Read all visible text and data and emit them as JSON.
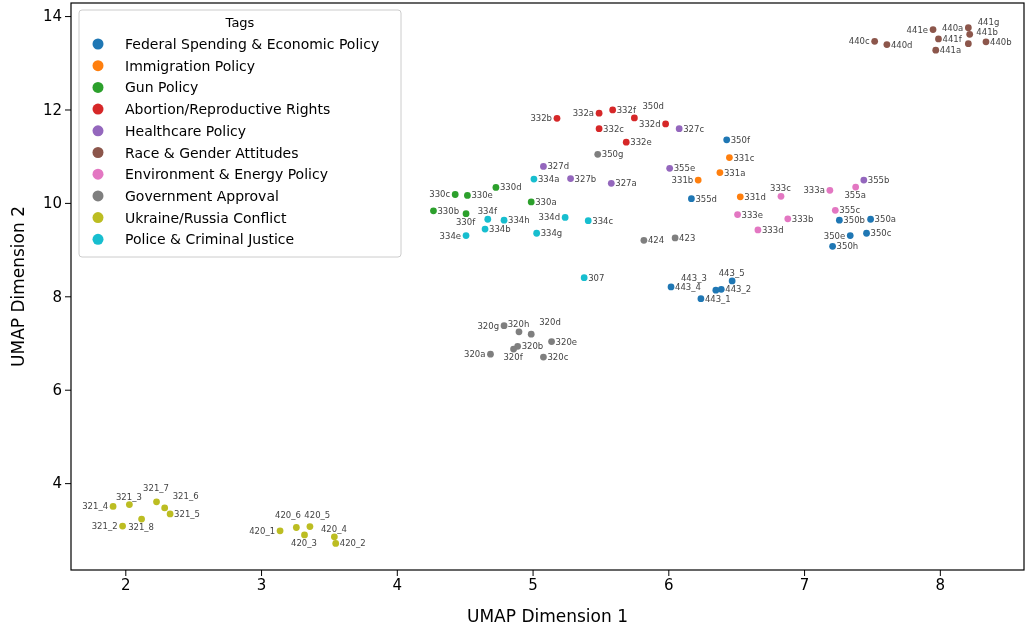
{
  "chart_data": {
    "type": "scatter",
    "xlabel": "UMAP Dimension 1",
    "ylabel": "UMAP Dimension 2",
    "legend_title": "Tags",
    "legend": "top left",
    "marker": "circle",
    "grid": false,
    "xlim": [
      1.6,
      8.62
    ],
    "ylim": [
      2.14,
      14.28
    ],
    "xticks": [
      2,
      3,
      4,
      5,
      6,
      7,
      8
    ],
    "yticks": [
      4,
      6,
      8,
      10,
      12,
      14
    ],
    "series": [
      {
        "name": "Federal Spending & Economic Policy",
        "color": "#1f77b4",
        "x": [
          6.43,
          6.17,
          7.26,
          7.49,
          7.34,
          7.46,
          7.21,
          6.24,
          6.39,
          6.35,
          6.02,
          6.47
        ],
        "values": [
          11.35,
          10.09,
          9.63,
          9.65,
          9.3,
          9.35,
          9.07,
          7.95,
          8.15,
          8.13,
          8.2,
          8.33
        ]
      },
      {
        "name": "Immigration Policy",
        "color": "#ff7f0e",
        "x": [
          6.38,
          6.22,
          6.45,
          6.53
        ],
        "values": [
          10.65,
          10.49,
          10.97,
          10.13
        ]
      },
      {
        "name": "Gun Policy",
        "color": "#2ca02c",
        "x": [
          4.99,
          4.27,
          4.43,
          4.73,
          4.52,
          4.51
        ],
        "values": [
          10.02,
          9.83,
          10.18,
          10.33,
          10.16,
          9.77
        ]
      },
      {
        "name": "Abortion/Reproductive Rights",
        "color": "#d62728",
        "x": [
          5.49,
          5.18,
          5.49,
          5.98,
          5.69,
          5.59,
          5.75
        ],
        "values": [
          11.92,
          11.81,
          11.59,
          11.69,
          11.3,
          11.99,
          11.82
        ]
      },
      {
        "name": "Healthcare Policy",
        "color": "#9467bd",
        "x": [
          5.58,
          5.28,
          6.08,
          5.08,
          7.44,
          6.01
        ],
        "values": [
          10.42,
          10.52,
          11.59,
          10.78,
          10.49,
          10.74
        ]
      },
      {
        "name": "Race & Gender Attitudes",
        "color": "#8c564b",
        "x": [
          8.21,
          8.34,
          7.52,
          7.61,
          7.97,
          8.21,
          7.95,
          7.99,
          8.22
        ],
        "values": [
          13.75,
          13.45,
          13.46,
          13.39,
          13.27,
          13.41,
          13.71,
          13.51,
          13.61
        ]
      },
      {
        "name": "Environment & Energy Policy",
        "color": "#e377c2",
        "x": [
          7.19,
          6.88,
          6.83,
          6.66,
          6.51,
          7.38,
          7.23
        ],
        "values": [
          10.27,
          9.66,
          10.14,
          9.42,
          9.75,
          10.34,
          9.84
        ]
      },
      {
        "name": "Government Approval",
        "color": "#7f7f7f",
        "x": [
          5.48,
          5.82,
          6.05,
          4.69,
          4.89,
          5.08,
          4.99,
          5.14,
          4.86,
          4.79,
          4.9
        ],
        "values": [
          11.04,
          9.2,
          9.25,
          6.76,
          6.93,
          6.7,
          7.19,
          7.03,
          6.87,
          7.37,
          7.24
        ]
      },
      {
        "name": "Ukraine/Russia Conflict",
        "color": "#bcbd22",
        "x": [
          1.98,
          2.03,
          1.91,
          2.33,
          2.29,
          2.23,
          2.12,
          3.14,
          3.55,
          3.32,
          3.54,
          3.26,
          3.36
        ],
        "values": [
          3.08,
          3.54,
          3.5,
          3.34,
          3.47,
          3.6,
          3.23,
          2.98,
          2.71,
          2.89,
          2.85,
          3.05,
          3.07
        ]
      },
      {
        "name": "Police & Criminal Justice",
        "color": "#17becf",
        "x": [
          5.01,
          4.65,
          5.41,
          5.24,
          4.51,
          4.67,
          5.03,
          4.79,
          5.38
        ],
        "values": [
          10.51,
          9.44,
          9.62,
          9.69,
          9.3,
          9.65,
          9.35,
          9.63,
          8.4
        ]
      }
    ],
    "annotations": [
      {
        "text": "350f",
        "x": 6.43,
        "y": 11.35
      },
      {
        "text": "355d",
        "x": 6.17,
        "y": 10.09
      },
      {
        "text": "350b",
        "x": 7.26,
        "y": 9.63
      },
      {
        "text": "350a",
        "x": 7.49,
        "y": 9.65
      },
      {
        "text": "350e",
        "x": 7.34,
        "y": 9.3
      },
      {
        "text": "350c",
        "x": 7.46,
        "y": 9.35
      },
      {
        "text": "350h",
        "x": 7.21,
        "y": 9.07
      },
      {
        "text": "443_1",
        "x": 6.24,
        "y": 7.95
      },
      {
        "text": "443_2",
        "x": 6.39,
        "y": 8.15
      },
      {
        "text": "443_3",
        "x": 6.35,
        "y": 8.13
      },
      {
        "text": "443_4",
        "x": 6.02,
        "y": 8.2
      },
      {
        "text": "443_5",
        "x": 6.47,
        "y": 8.33
      },
      {
        "text": "331a",
        "x": 6.38,
        "y": 10.65
      },
      {
        "text": "331b",
        "x": 6.22,
        "y": 10.49
      },
      {
        "text": "331c",
        "x": 6.45,
        "y": 10.97
      },
      {
        "text": "331d",
        "x": 6.53,
        "y": 10.13
      },
      {
        "text": "330a",
        "x": 4.99,
        "y": 10.02
      },
      {
        "text": "330b",
        "x": 4.27,
        "y": 9.83
      },
      {
        "text": "330c",
        "x": 4.43,
        "y": 10.18
      },
      {
        "text": "330d",
        "x": 4.73,
        "y": 10.33
      },
      {
        "text": "330e",
        "x": 4.52,
        "y": 10.16
      },
      {
        "text": "330f",
        "x": 4.51,
        "y": 9.77
      },
      {
        "text": "332a",
        "x": 5.49,
        "y": 11.92
      },
      {
        "text": "332b",
        "x": 5.18,
        "y": 11.81
      },
      {
        "text": "332c",
        "x": 5.49,
        "y": 11.59
      },
      {
        "text": "332d",
        "x": 5.98,
        "y": 11.69
      },
      {
        "text": "332e",
        "x": 5.69,
        "y": 11.3
      },
      {
        "text": "332f",
        "x": 5.59,
        "y": 11.99
      },
      {
        "text": "350d",
        "x": 5.75,
        "y": 11.82
      },
      {
        "text": "327a",
        "x": 5.58,
        "y": 10.42
      },
      {
        "text": "327b",
        "x": 5.28,
        "y": 10.52
      },
      {
        "text": "327c",
        "x": 6.08,
        "y": 11.59
      },
      {
        "text": "327d",
        "x": 5.08,
        "y": 10.78
      },
      {
        "text": "355b",
        "x": 7.44,
        "y": 10.49
      },
      {
        "text": "355e",
        "x": 6.01,
        "y": 10.74
      },
      {
        "text": "440a",
        "x": 8.21,
        "y": 13.75
      },
      {
        "text": "440b",
        "x": 8.34,
        "y": 13.45
      },
      {
        "text": "440c",
        "x": 7.52,
        "y": 13.46
      },
      {
        "text": "440d",
        "x": 7.61,
        "y": 13.39
      },
      {
        "text": "441a",
        "x": 7.97,
        "y": 13.27
      },
      {
        "text": "441b",
        "x": 8.21,
        "y": 13.41
      },
      {
        "text": "441e",
        "x": 7.95,
        "y": 13.71
      },
      {
        "text": "441f",
        "x": 7.99,
        "y": 13.51
      },
      {
        "text": "441g",
        "x": 8.22,
        "y": 13.61
      },
      {
        "text": "333a",
        "x": 7.19,
        "y": 10.27
      },
      {
        "text": "333b",
        "x": 6.88,
        "y": 9.66
      },
      {
        "text": "333c",
        "x": 6.83,
        "y": 10.14
      },
      {
        "text": "333d",
        "x": 6.66,
        "y": 9.42
      },
      {
        "text": "333e",
        "x": 6.51,
        "y": 9.75
      },
      {
        "text": "355a",
        "x": 7.38,
        "y": 10.34
      },
      {
        "text": "355c",
        "x": 7.23,
        "y": 9.84
      },
      {
        "text": "350g",
        "x": 5.48,
        "y": 11.04
      },
      {
        "text": "424",
        "x": 5.82,
        "y": 9.2
      },
      {
        "text": "423",
        "x": 6.05,
        "y": 9.25
      },
      {
        "text": "320a",
        "x": 4.69,
        "y": 6.76
      },
      {
        "text": "320b",
        "x": 4.89,
        "y": 6.93
      },
      {
        "text": "320c",
        "x": 5.08,
        "y": 6.7
      },
      {
        "text": "320d",
        "x": 4.99,
        "y": 7.19
      },
      {
        "text": "320e",
        "x": 5.14,
        "y": 7.03
      },
      {
        "text": "320f",
        "x": 4.86,
        "y": 6.87
      },
      {
        "text": "320g",
        "x": 4.79,
        "y": 7.37
      },
      {
        "text": "320h",
        "x": 4.9,
        "y": 7.24
      },
      {
        "text": "321_2",
        "x": 1.98,
        "y": 3.08
      },
      {
        "text": "321_3",
        "x": 2.03,
        "y": 3.54
      },
      {
        "text": "321_4",
        "x": 1.91,
        "y": 3.5
      },
      {
        "text": "321_5",
        "x": 2.33,
        "y": 3.34
      },
      {
        "text": "321_6",
        "x": 2.29,
        "y": 3.47
      },
      {
        "text": "321_7",
        "x": 2.23,
        "y": 3.6
      },
      {
        "text": "321_8",
        "x": 2.12,
        "y": 3.23
      },
      {
        "text": "420_1",
        "x": 3.14,
        "y": 2.98
      },
      {
        "text": "420_2",
        "x": 3.55,
        "y": 2.71
      },
      {
        "text": "420_3",
        "x": 3.32,
        "y": 2.89
      },
      {
        "text": "420_4",
        "x": 3.54,
        "y": 2.85
      },
      {
        "text": "420_5",
        "x": 3.26,
        "y": 3.05
      },
      {
        "text": "420_6",
        "x": 3.36,
        "y": 3.07
      },
      {
        "text": "334a",
        "x": 5.01,
        "y": 10.51
      },
      {
        "text": "334b",
        "x": 4.65,
        "y": 9.44
      },
      {
        "text": "334c",
        "x": 5.41,
        "y": 9.62
      },
      {
        "text": "334d",
        "x": 5.24,
        "y": 9.69
      },
      {
        "text": "334e",
        "x": 4.51,
        "y": 9.3
      },
      {
        "text": "334f",
        "x": 4.67,
        "y": 9.65
      },
      {
        "text": "334g",
        "x": 5.03,
        "y": 9.35
      },
      {
        "text": "334h",
        "x": 4.79,
        "y": 9.63
      },
      {
        "text": "307",
        "x": 5.38,
        "y": 8.4
      }
    ]
  }
}
